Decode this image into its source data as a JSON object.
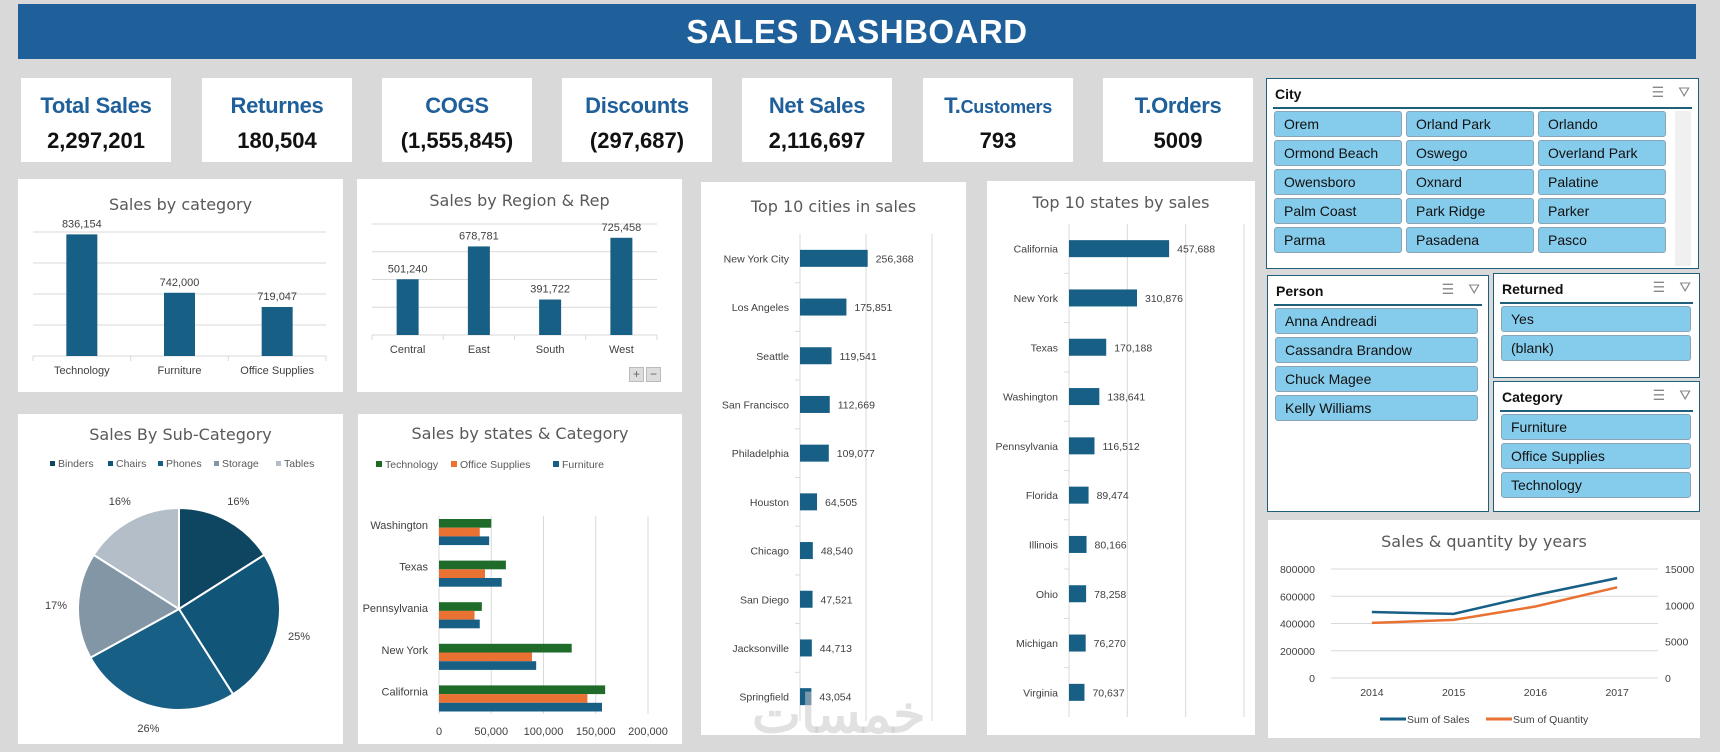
{
  "header": {
    "title": "SALES DASHBOARD"
  },
  "kpis": [
    {
      "label": "Total Sales",
      "value": "2,297,201"
    },
    {
      "label": "Returnes",
      "value": "180,504"
    },
    {
      "label": "COGS",
      "value": "(1,555,845)"
    },
    {
      "label": "Discounts",
      "value": "(297,687)"
    },
    {
      "label": "Net Sales",
      "value": "2,116,697"
    },
    {
      "label_prefix": "T.",
      "label": "Customers",
      "value": "793"
    },
    {
      "label": "T.Orders",
      "value": "5009"
    }
  ],
  "colors": {
    "primary": "#1f5f9a",
    "bar": "#175f85",
    "technology": "#1e6b2a",
    "office_supplies": "#e97132",
    "furniture": "#175f85",
    "slicer_item": "#85cbeb"
  },
  "slicers": {
    "city": {
      "title": "City",
      "items": [
        "Orem",
        "Orland Park",
        "Orlando",
        "Ormond Beach",
        "Oswego",
        "Overland Park",
        "Owensboro",
        "Oxnard",
        "Palatine",
        "Palm Coast",
        "Park Ridge",
        "Parker",
        "Parma",
        "Pasadena",
        "Pasco"
      ]
    },
    "person": {
      "title": "Person",
      "items": [
        "Anna Andreadi",
        "Cassandra Brandow",
        "Chuck Magee",
        "Kelly Williams"
      ]
    },
    "returned": {
      "title": "Returned",
      "items": [
        "Yes",
        "(blank)"
      ]
    },
    "category": {
      "title": "Category",
      "items": [
        "Furniture",
        "Office Supplies",
        "Technology"
      ]
    },
    "icons": {
      "multiselect": "multi-select-icon",
      "clear": "clear-filter-icon"
    }
  },
  "pivot_buttons": {
    "expand": "+",
    "collapse": "−"
  },
  "watermark": "خمسات",
  "chart_data": [
    {
      "id": "category",
      "type": "bar",
      "title": "Sales by category",
      "categories": [
        "Technology",
        "Furniture",
        "Office Supplies"
      ],
      "values": [
        836154,
        742000,
        719047
      ],
      "labels": [
        "836,154",
        "742,000",
        "719,047"
      ],
      "ylim": [
        640000,
        840000
      ],
      "grid": true
    },
    {
      "id": "region",
      "type": "bar",
      "title": "Sales by Region & Rep",
      "categories": [
        "Central",
        "East",
        "South",
        "West"
      ],
      "values": [
        501240,
        678781,
        391722,
        725458
      ],
      "labels": [
        "501,240",
        "678,781",
        "391,722",
        "725,458"
      ],
      "ylim": [
        200000,
        800000
      ],
      "grid": true
    },
    {
      "id": "subcat",
      "type": "pie",
      "title": "Sales By Sub-Category",
      "categories": [
        "Binders",
        "Chairs",
        "Phones",
        "Storage",
        "Tables"
      ],
      "values": [
        16,
        25,
        26,
        17,
        16
      ],
      "labels": [
        "16%",
        "25%",
        "26%",
        "17%",
        "16%"
      ],
      "colors": [
        "#0e4560",
        "#115578",
        "#175f85",
        "#8396a6",
        "#b3bec9"
      ],
      "legend": "top"
    },
    {
      "id": "statecat",
      "type": "bar",
      "orientation": "horizontal",
      "title": "Sales by states & Category",
      "categories": [
        "Washington",
        "Texas",
        "Pennsylvania",
        "New York",
        "California"
      ],
      "series": [
        {
          "name": "Technology",
          "values": [
            50000,
            64000,
            41000,
            127000,
            159000
          ]
        },
        {
          "name": "Office Supplies",
          "values": [
            39000,
            44000,
            34000,
            89000,
            142000
          ]
        },
        {
          "name": "Furniture",
          "values": [
            48000,
            60000,
            39000,
            93000,
            156000
          ]
        }
      ],
      "xlim": [
        0,
        200000
      ],
      "xticks": [
        "0",
        "50,000",
        "100,000",
        "150,000",
        "200,000"
      ],
      "legend": "top",
      "grid": true
    },
    {
      "id": "cities",
      "type": "bar",
      "orientation": "horizontal",
      "title": "Top 10 cities in sales",
      "categories": [
        "New York City",
        "Los Angeles",
        "Seattle",
        "San Francisco",
        "Philadelphia",
        "Houston",
        "Chicago",
        "San Diego",
        "Jacksonville",
        "Springfield"
      ],
      "values": [
        256368,
        175851,
        119541,
        112669,
        109077,
        64505,
        48540,
        47521,
        44713,
        43054
      ],
      "labels": [
        "256,368",
        "175,851",
        "119,541",
        "112,669",
        "109,077",
        "64,505",
        "48,540",
        "47,521",
        "44,713",
        "43,054"
      ],
      "xlim": [
        0,
        500000
      ],
      "grid": true
    },
    {
      "id": "states",
      "type": "bar",
      "orientation": "horizontal",
      "title": "Top 10 states by sales",
      "categories": [
        "California",
        "New York",
        "Texas",
        "Washington",
        "Pennsylvania",
        "Florida",
        "Illinois",
        "Ohio",
        "Michigan",
        "Virginia"
      ],
      "values": [
        457688,
        310876,
        170188,
        138641,
        116512,
        89474,
        80166,
        78258,
        76270,
        70637
      ],
      "labels": [
        "457,688",
        "310,876",
        "170,188",
        "138,641",
        "116,512",
        "89,474",
        "80,166",
        "78,258",
        "76,270",
        "70,637"
      ],
      "xlim": [
        0,
        800000
      ],
      "grid": true
    },
    {
      "id": "years",
      "type": "line",
      "title": "Sales & quantity by years",
      "x": [
        "2014",
        "2015",
        "2016",
        "2017"
      ],
      "series": [
        {
          "name": "Sum of Sales",
          "axis": "left",
          "values": [
            484247,
            470533,
            609206,
            733215
          ]
        },
        {
          "name": "Sum of Quantity",
          "axis": "right",
          "values": [
            7581,
            8000,
            9837,
            12476
          ]
        }
      ],
      "ylim": [
        0,
        800000
      ],
      "yticks": [
        "0",
        "200000",
        "400000",
        "600000",
        "800000"
      ],
      "y2lim": [
        0,
        15000
      ],
      "y2ticks": [
        "0",
        "5000",
        "10000",
        "15000"
      ],
      "legend": "bottom",
      "grid": true
    }
  ]
}
